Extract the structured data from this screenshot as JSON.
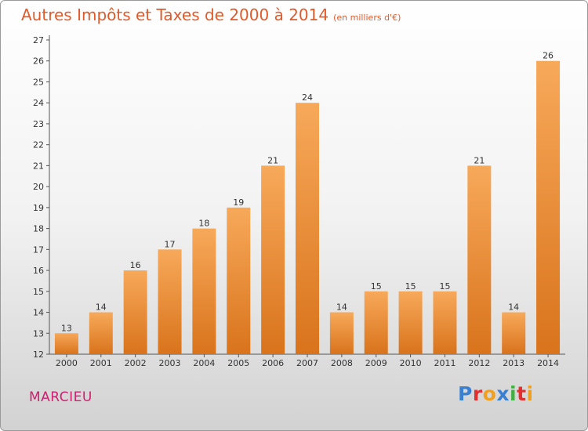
{
  "title": "Autres Impôts et Taxes de 2000 à 2014",
  "unit_note": "(en milliers d'€)",
  "town": "MARCIEU",
  "logo": {
    "text": "Proxiti"
  },
  "colors": {
    "bar_light": "#f7a95a",
    "bar_dark": "#d9731c",
    "title": "#e15a2a",
    "town": "#d21e6e"
  },
  "chart_data": {
    "type": "bar",
    "categories": [
      "2000",
      "2001",
      "2002",
      "2003",
      "2004",
      "2005",
      "2006",
      "2007",
      "2008",
      "2009",
      "2010",
      "2011",
      "2012",
      "2013",
      "2014"
    ],
    "values": [
      13,
      14,
      16,
      17,
      18,
      19,
      21,
      24,
      14,
      15,
      15,
      15,
      21,
      14,
      26
    ],
    "title": "Autres Impôts et Taxes de 2000 à 2014",
    "ylim": [
      12,
      27
    ],
    "yticks": [
      12,
      13,
      14,
      15,
      16,
      17,
      18,
      19,
      20,
      21,
      22,
      23,
      24,
      25,
      26,
      27
    ],
    "grid": false,
    "legend": "none"
  }
}
